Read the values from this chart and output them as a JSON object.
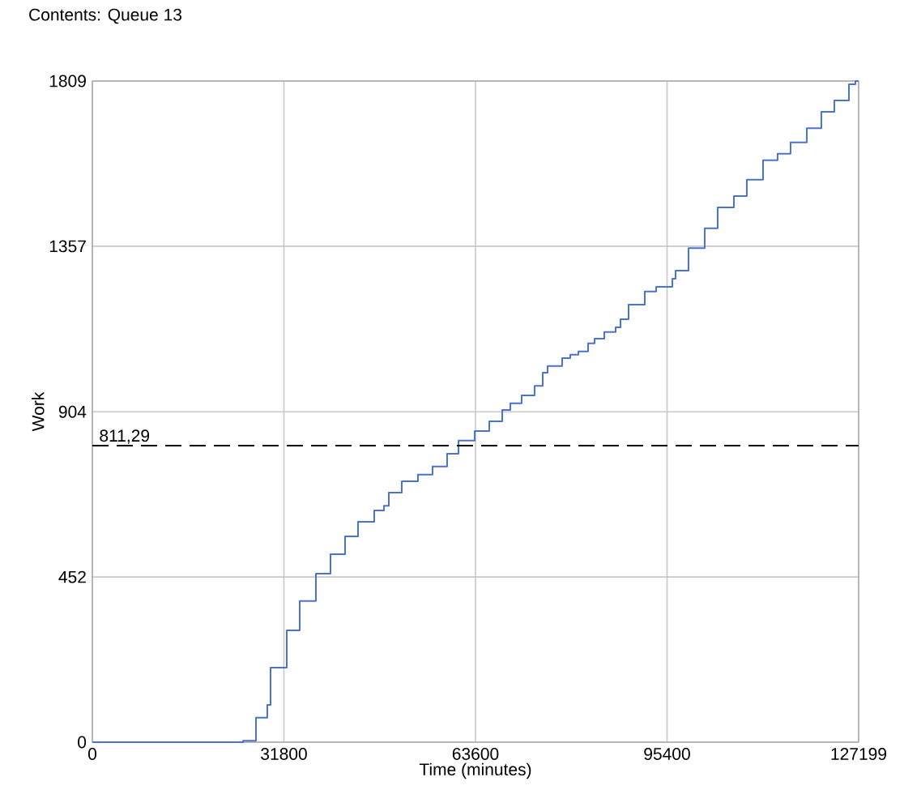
{
  "chart_data": {
    "type": "step",
    "title": "Contents: Queue 13",
    "xlabel": "Time (minutes)",
    "ylabel": "Work",
    "x": [
      0,
      25010,
      27160,
      29040,
      29580,
      32270,
      34420,
      37110,
      39530,
      41950,
      44100,
      46790,
      48410,
      49210,
      51360,
      54050,
      56470,
      58890,
      60780,
      63470,
      65890,
      68040,
      69380,
      71260,
      73410,
      74760,
      75570,
      77990,
      79330,
      80680,
      82290,
      83370,
      84980,
      86860,
      87670,
      89010,
      91700,
      93590,
      96280,
      96810,
      98960,
      101650,
      103800,
      106490,
      108640,
      111330,
      113750,
      115900,
      118600,
      121010,
      123170,
      125590,
      126660,
      127199
    ],
    "series": [
      {
        "color": "#4a72d6",
        "values": [
          0,
          4,
          67,
          102,
          204,
          306,
          386,
          461,
          514,
          563,
          603,
          634,
          647,
          683,
          714,
          732,
          754,
          789,
          825,
          851,
          878,
          909,
          927,
          949,
          975,
          1011,
          1029,
          1051,
          1060,
          1069,
          1091,
          1104,
          1122,
          1135,
          1157,
          1197,
          1233,
          1246,
          1268,
          1290,
          1352,
          1406,
          1463,
          1494,
          1539,
          1592,
          1610,
          1641,
          1680,
          1725,
          1756,
          1800,
          1809,
          1809
        ]
      }
    ],
    "xlim": [
      0,
      127199
    ],
    "ylim": [
      0,
      1809
    ],
    "xticks": [
      0,
      31800,
      63600,
      95400,
      127199
    ],
    "yticks": [
      0,
      452,
      904,
      1357,
      1809
    ],
    "ref_lines": [
      {
        "axis": "y",
        "value": 811.29,
        "label": "811,29",
        "color": "#000000",
        "line_style": "dashed"
      }
    ],
    "grid": true
  }
}
